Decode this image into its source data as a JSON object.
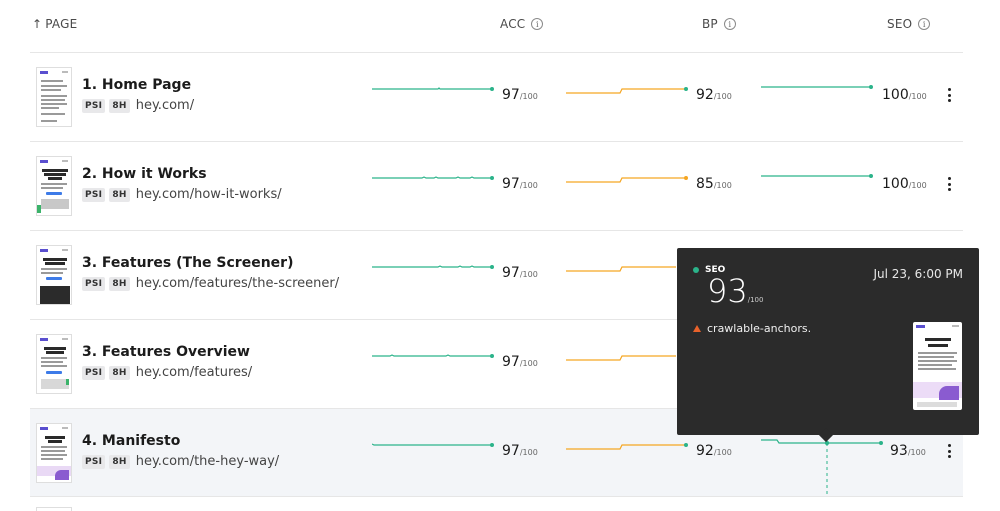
{
  "header": {
    "sort_arrow": "↑",
    "page_label": "PAGE",
    "acc_label": "ACC",
    "bp_label": "BP",
    "seo_label": "SEO",
    "info_glyph": "i"
  },
  "rows": [
    {
      "title": "1. Home Page",
      "tag1": "PSI",
      "tag2": "8H",
      "url": "hey.com/",
      "acc": "97",
      "bp": "92",
      "seo": "100",
      "denom": "/100"
    },
    {
      "title": "2. How it Works",
      "tag1": "PSI",
      "tag2": "8H",
      "url": "hey.com/how-it-works/",
      "acc": "97",
      "bp": "85",
      "seo": "100",
      "denom": "/100"
    },
    {
      "title": "3. Features (The Screener)",
      "tag1": "PSI",
      "tag2": "8H",
      "url": "hey.com/features/the-screener/",
      "acc": "97",
      "bp": "",
      "seo": "",
      "denom": "/100"
    },
    {
      "title": "3. Features Overview",
      "tag1": "PSI",
      "tag2": "8H",
      "url": "hey.com/features/",
      "acc": "97",
      "bp": "",
      "seo": "",
      "denom": "/100"
    },
    {
      "title": "4. Manifesto",
      "tag1": "PSI",
      "tag2": "8H",
      "url": "hey.com/the-hey-way/",
      "acc": "97",
      "bp": "92",
      "seo": "93",
      "denom": "/100"
    }
  ],
  "tooltip": {
    "metric": "SEO",
    "date": "Jul 23, 6:00 PM",
    "score": "93",
    "denom": "/100",
    "audit": "crawlable-anchors."
  },
  "colors": {
    "acc_line": "#2bb38a",
    "bp_line": "#f5a623",
    "seo_line": "#2bb38a",
    "warn": "#e8622b",
    "tooltip_bg": "#2b2b2b"
  },
  "icons": {
    "info": "info-circle-icon",
    "menu": "vertical-dots-icon",
    "warning": "warning-triangle-icon"
  }
}
